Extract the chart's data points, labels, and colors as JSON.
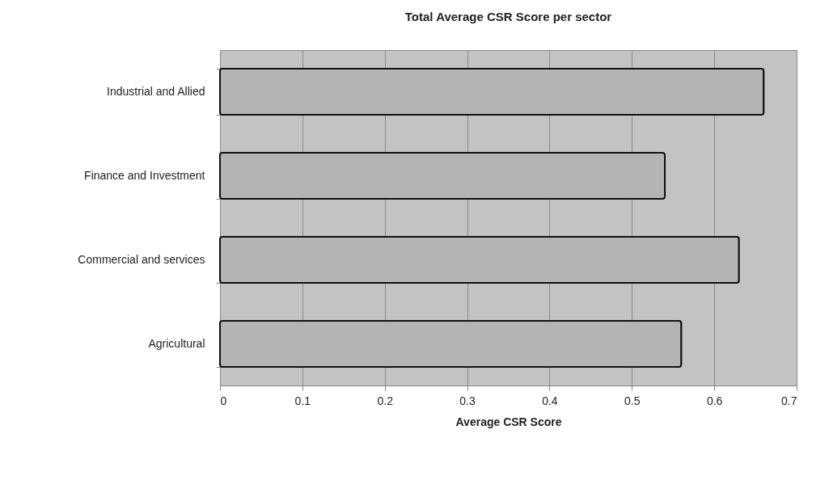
{
  "chart_data": {
    "type": "bar",
    "orientation": "horizontal",
    "title": "Total Average CSR Score per sector",
    "xlabel": "Average CSR Score",
    "categories": [
      "Industrial and Allied",
      "Finance and Investment",
      "Commercial and services",
      "Agricultural"
    ],
    "values": [
      0.66,
      0.54,
      0.63,
      0.56
    ],
    "color": "#b4b4b4",
    "xlim": [
      0,
      0.7
    ],
    "xticks": [
      0,
      0.1,
      0.2,
      0.3,
      0.4,
      0.5,
      0.6,
      0.7
    ],
    "grid": "x"
  }
}
